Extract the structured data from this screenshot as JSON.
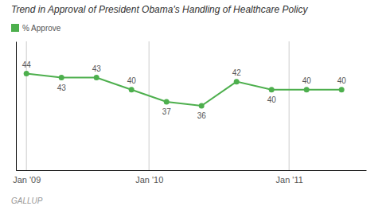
{
  "chart_data": {
    "type": "line",
    "title": "Trend in Approval of President Obama's Handling of Healthcare Policy",
    "x": [
      0,
      1,
      2,
      3,
      4,
      5,
      6,
      7,
      8,
      9
    ],
    "series": [
      {
        "name": "% Approve",
        "color": "#4daf4d",
        "marker": "circle",
        "values": [
          44,
          43,
          43,
          40,
          37,
          36,
          42,
          40,
          40,
          40
        ]
      }
    ],
    "xlim": [
      -0.3,
      9.7
    ],
    "xticks": [
      {
        "value": 0,
        "label": "Jan '09"
      },
      {
        "value": 3.5,
        "label": "Jan '10"
      },
      {
        "value": 7.5,
        "label": "Jan '11"
      }
    ],
    "ylim": [
      20,
      52
    ],
    "grid": true,
    "tick_labels": "x",
    "data_labels": true,
    "legend": "upper left",
    "annotations": [
      "GALLUP"
    ]
  }
}
